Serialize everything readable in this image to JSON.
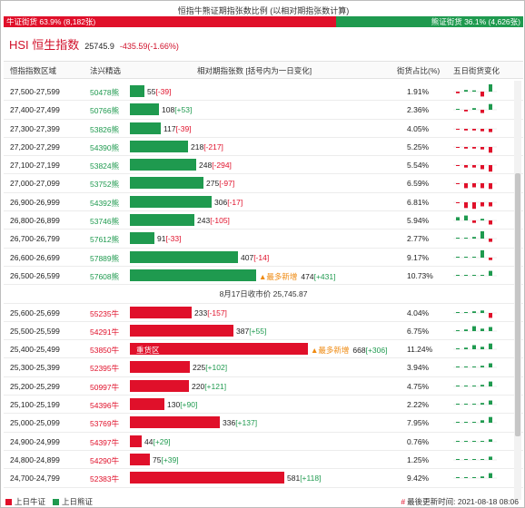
{
  "title": "恒指牛熊证期指张数比例 (以相对期指张数计算)",
  "ratio": {
    "bull_label": "牛证街货 63.9% (8,182张)",
    "bear_label": "熊证街货 36.1% (4,626张)",
    "bull_share": 0.639
  },
  "hsi": {
    "name": "HSI 恒生指数",
    "price": "25745.9",
    "change": "-435.59(-1.66%)"
  },
  "header": {
    "zone": "恒指指数区域",
    "code": "法兴精选",
    "bar": "相对期指张数 [括号内为一日变化]",
    "pct": "街货占比(%)",
    "spark": "五日街货变化"
  },
  "colors": {
    "bull": "#e0102a",
    "bear": "#1f9a4f",
    "badge": "#ef8a10"
  },
  "bear_rows": [
    {
      "zone": "27,500-27,599",
      "code": "50478熊",
      "value": 55,
      "value_text": "55",
      "delta": "[-39]",
      "delta_sign": "neg",
      "pct": "1.91%",
      "badge": "",
      "spark": [
        -0.2,
        0.2,
        0.15,
        -0.6,
        0.9
      ]
    },
    {
      "zone": "27,400-27,499",
      "code": "50766熊",
      "value": 108,
      "value_text": "108",
      "delta": "[+53]",
      "delta_sign": "pos",
      "pct": "2.36%",
      "badge": "",
      "spark": [
        0.1,
        -0.2,
        0.2,
        -0.4,
        0.7
      ]
    },
    {
      "zone": "27,300-27,399",
      "code": "53826熊",
      "value": 117,
      "value_text": "117",
      "delta": "[-39]",
      "delta_sign": "neg",
      "pct": "4.05%",
      "badge": "",
      "spark": [
        -0.1,
        -0.2,
        -0.2,
        -0.3,
        -0.4
      ]
    },
    {
      "zone": "27,200-27,299",
      "code": "54390熊",
      "value": 218,
      "value_text": "218",
      "delta": "[-217]",
      "delta_sign": "neg",
      "pct": "5.25%",
      "badge": "",
      "spark": [
        -0.1,
        -0.2,
        -0.2,
        -0.3,
        -0.7
      ]
    },
    {
      "zone": "27,100-27,199",
      "code": "53824熊",
      "value": 248,
      "value_text": "248",
      "delta": "[-294]",
      "delta_sign": "neg",
      "pct": "5.54%",
      "badge": "",
      "spark": [
        -0.1,
        -0.3,
        -0.3,
        -0.5,
        -0.8
      ]
    },
    {
      "zone": "27,000-27,099",
      "code": "53752熊",
      "value": 275,
      "value_text": "275",
      "delta": "[-97]",
      "delta_sign": "neg",
      "pct": "6.59%",
      "badge": "",
      "spark": [
        -0.1,
        -0.6,
        -0.5,
        -0.6,
        -0.7
      ]
    },
    {
      "zone": "26,900-26,999",
      "code": "54392熊",
      "value": 306,
      "value_text": "306",
      "delta": "[-17]",
      "delta_sign": "neg",
      "pct": "6.81%",
      "badge": "",
      "spark": [
        -0.1,
        -0.7,
        -0.8,
        -0.5,
        -0.5
      ]
    },
    {
      "zone": "26,800-26,899",
      "code": "53746熊",
      "value": 243,
      "value_text": "243",
      "delta": "[-105]",
      "delta_sign": "neg",
      "pct": "5.94%",
      "badge": "",
      "spark": [
        0.4,
        0.6,
        -0.3,
        0.2,
        -0.5
      ]
    },
    {
      "zone": "26,700-26,799",
      "code": "57612熊",
      "value": 91,
      "value_text": "91",
      "delta": "[-33]",
      "delta_sign": "neg",
      "pct": "2.77%",
      "badge": "",
      "spark": [
        0.05,
        0.05,
        0.2,
        0.9,
        -0.4
      ]
    },
    {
      "zone": "26,600-26,699",
      "code": "57889熊",
      "value": 407,
      "value_text": "407",
      "delta": "[-14]",
      "delta_sign": "neg",
      "pct": "9.17%",
      "badge": "",
      "spark": [
        0.05,
        0.05,
        0.1,
        0.9,
        -0.3
      ]
    },
    {
      "zone": "26,500-26,599",
      "code": "57608熊",
      "value": 474,
      "value_text": "474",
      "delta": "[+431]",
      "delta_sign": "pos",
      "pct": "10.73%",
      "badge": "▲最多新增",
      "spark": [
        0.05,
        0.05,
        0.05,
        0.1,
        0.6
      ]
    }
  ],
  "midline": "8月17日收市价 25,745.87",
  "bull_rows": [
    {
      "zone": "25,600-25,699",
      "code": "55235牛",
      "value": 233,
      "value_text": "233",
      "delta": "[-157]",
      "delta_sign": "neg",
      "pct": "4.04%",
      "badge": "",
      "inbar": "",
      "spark": [
        0.1,
        0.1,
        0.2,
        0.3,
        -0.6
      ]
    },
    {
      "zone": "25,500-25,599",
      "code": "54291牛",
      "value": 387,
      "value_text": "387",
      "delta": "[+55]",
      "delta_sign": "pos",
      "pct": "6.75%",
      "badge": "",
      "inbar": "",
      "spark": [
        0.1,
        0.2,
        0.6,
        0.3,
        0.5
      ]
    },
    {
      "zone": "25,400-25,499",
      "code": "53850牛",
      "value": 668,
      "value_text": "668",
      "delta": "[+306]",
      "delta_sign": "pos",
      "pct": "11.24%",
      "badge": "▲最多新增",
      "inbar": "重货区",
      "spark": [
        0.1,
        0.2,
        0.5,
        0.3,
        0.7
      ]
    },
    {
      "zone": "25,300-25,399",
      "code": "52395牛",
      "value": 225,
      "value_text": "225",
      "delta": "[+102]",
      "delta_sign": "pos",
      "pct": "3.94%",
      "badge": "",
      "inbar": "",
      "spark": [
        0.05,
        0.05,
        0.1,
        0.2,
        0.5
      ]
    },
    {
      "zone": "25,200-25,299",
      "code": "50997牛",
      "value": 220,
      "value_text": "220",
      "delta": "[+121]",
      "delta_sign": "pos",
      "pct": "4.75%",
      "badge": "",
      "inbar": "",
      "spark": [
        0.05,
        0.05,
        0.1,
        0.2,
        0.6
      ]
    },
    {
      "zone": "25,100-25,199",
      "code": "54396牛",
      "value": 130,
      "value_text": "130",
      "delta": "[+90]",
      "delta_sign": "pos",
      "pct": "2.22%",
      "badge": "",
      "inbar": "",
      "spark": [
        0.05,
        0.1,
        0.05,
        0.2,
        0.5
      ]
    },
    {
      "zone": "25,000-25,099",
      "code": "53769牛",
      "value": 336,
      "value_text": "336",
      "delta": "[+137]",
      "delta_sign": "pos",
      "pct": "7.95%",
      "badge": "",
      "inbar": "",
      "spark": [
        0.05,
        0.1,
        0.05,
        0.3,
        0.7
      ]
    },
    {
      "zone": "24,900-24,999",
      "code": "54397牛",
      "value": 44,
      "value_text": "44",
      "delta": "[+29]",
      "delta_sign": "pos",
      "pct": "0.76%",
      "badge": "",
      "inbar": "",
      "spark": [
        0.05,
        0.05,
        0.1,
        0.1,
        0.3
      ]
    },
    {
      "zone": "24,800-24,899",
      "code": "54290牛",
      "value": 75,
      "value_text": "75",
      "delta": "[+39]",
      "delta_sign": "pos",
      "pct": "1.25%",
      "badge": "",
      "inbar": "",
      "spark": [
        0.05,
        0.05,
        0.05,
        0.1,
        0.4
      ]
    },
    {
      "zone": "24,700-24,799",
      "code": "52383牛",
      "value": 581,
      "value_text": "581",
      "delta": "[+118]",
      "delta_sign": "pos",
      "pct": "9.42%",
      "badge": "",
      "inbar": "",
      "spark": [
        0.05,
        0.1,
        0.1,
        0.2,
        0.6
      ]
    }
  ],
  "footer": {
    "legend_bull": "上日牛证",
    "legend_bear": "上日熊证",
    "update_hash": "#",
    "update_label": "最後更新时间: 2021-08-18 08:06"
  }
}
